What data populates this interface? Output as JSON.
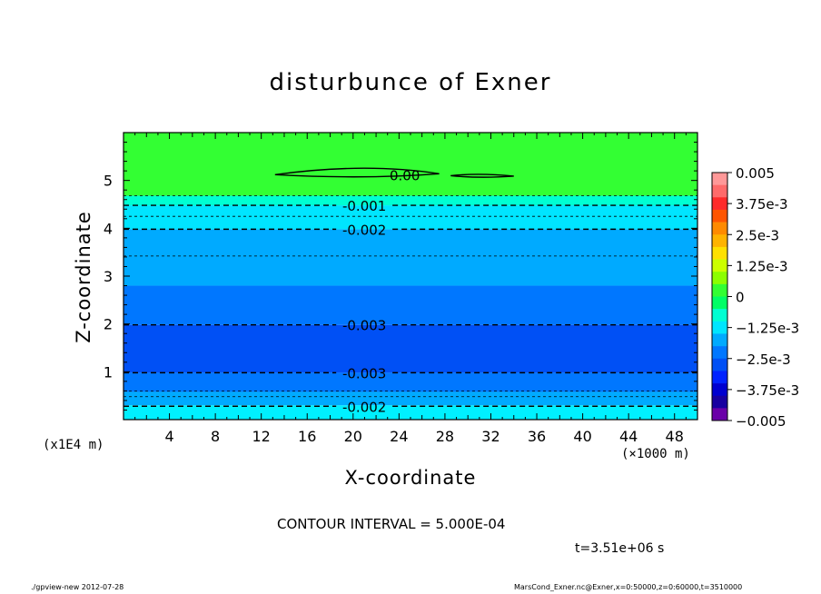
{
  "chart_data": {
    "type": "contour",
    "title": "disturbunce of Exner",
    "xlabel": "X-coordinate",
    "ylabel": "Z-coordinate",
    "x_unit": "(×1000 m)",
    "y_unit": "(x1E4 m)",
    "xlim": [
      0,
      50
    ],
    "ylim": [
      0,
      6
    ],
    "xticks": [
      4,
      8,
      12,
      16,
      20,
      24,
      28,
      32,
      36,
      40,
      44,
      48
    ],
    "yticks": [
      1,
      2,
      3,
      4,
      5
    ],
    "colorbar": {
      "ticks": [
        "0.005",
        "3.75e-3",
        "2.5e-3",
        "1.25e-3",
        "0",
        "−1.25e-3",
        "−2.5e-3",
        "−3.75e-3",
        "−0.005"
      ],
      "levels": [
        0.005,
        0.0045,
        0.004,
        0.0035,
        0.003,
        0.0025,
        0.002,
        0.0015,
        0.001,
        0.0005,
        0,
        -0.0005,
        -0.001,
        -0.0015,
        -0.002,
        -0.0025,
        -0.003,
        -0.0035,
        -0.004,
        -0.0045,
        -0.005
      ],
      "colors": [
        "#ff9898",
        "#ff6a6a",
        "#ff2a2a",
        "#ff5500",
        "#ff8a00",
        "#ffb300",
        "#ffe000",
        "#ccff00",
        "#8cff00",
        "#33ff33",
        "#00ff66",
        "#00ffd2",
        "#00e5ff",
        "#00aaff",
        "#0077ff",
        "#0050f5",
        "#0022ff",
        "#0000d0",
        "#1800a0",
        "#6a00a8"
      ]
    },
    "bands": [
      {
        "z0": 0.0,
        "z1": 0.3,
        "color": "#00f0ff"
      },
      {
        "z0": 0.3,
        "z1": 0.58,
        "color": "#00aaff"
      },
      {
        "z0": 0.58,
        "z1": 0.98,
        "color": "#0077ff"
      },
      {
        "z0": 0.98,
        "z1": 1.98,
        "color": "#0050f5"
      },
      {
        "z0": 1.98,
        "z1": 2.8,
        "color": "#0077ff"
      },
      {
        "z0": 2.8,
        "z1": 3.98,
        "color": "#00aaff"
      },
      {
        "z0": 3.98,
        "z1": 4.48,
        "color": "#00e5ff"
      },
      {
        "z0": 4.48,
        "z1": 4.68,
        "color": "#00ffd2"
      },
      {
        "z0": 4.68,
        "z1": 6.0,
        "color": "#33ff33"
      }
    ],
    "contours": [
      {
        "z": 0.28,
        "style": "dashed",
        "label": "-0.002",
        "label_x": 19
      },
      {
        "z": 0.48,
        "style": "dashed",
        "label": "",
        "label_x": null
      },
      {
        "z": 0.6,
        "style": "dashed",
        "label": "",
        "label_x": null
      },
      {
        "z": 0.98,
        "style": "dashed",
        "label": "-0.003",
        "label_x": 19
      },
      {
        "z": 1.98,
        "style": "dashed",
        "label": "-0.003",
        "label_x": 19
      },
      {
        "z": 3.42,
        "style": "dashed",
        "label": "",
        "label_x": null
      },
      {
        "z": 3.98,
        "style": "dashed",
        "label": "-0.002",
        "label_x": 19
      },
      {
        "z": 4.25,
        "style": "dashed",
        "label": "",
        "label_x": null
      },
      {
        "z": 4.48,
        "style": "dashed",
        "label": "-0.001",
        "label_x": 19
      },
      {
        "z": 4.68,
        "style": "dashed",
        "label": "",
        "label_x": null
      }
    ],
    "zero_contour_label": "0.00"
  },
  "contour_interval": "CONTOUR INTERVAL = 5.000E-04",
  "time_label": "t=3.51e+06 s",
  "footer_left": "./gpview-new  2012-07-28",
  "footer_right": "MarsCond_Exner.nc@Exner,x=0:50000,z=0:60000,t=3510000"
}
